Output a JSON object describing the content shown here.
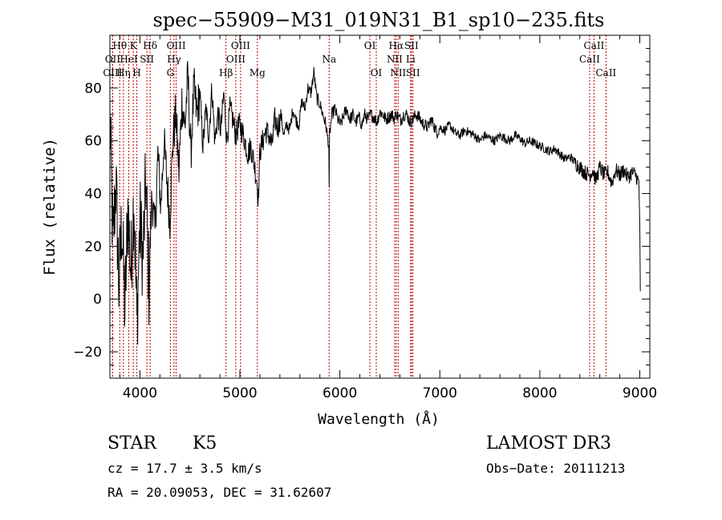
{
  "chart_data": {
    "type": "line",
    "title": "spec−55909−M31_019N31_B1_sp10−235.fits",
    "xlabel": "Wavelength (Å)",
    "ylabel": "Flux (relative)",
    "xlim": [
      3700,
      9100
    ],
    "ylim": [
      -30,
      100
    ],
    "xticks": [
      4000,
      5000,
      6000,
      7000,
      8000,
      9000
    ],
    "yticks": [
      -20,
      0,
      20,
      40,
      60,
      80
    ],
    "ytick_labels": [
      "−20",
      "0",
      "20",
      "40",
      "60",
      "80"
    ],
    "grid": false,
    "series": [
      {
        "name": "flux",
        "color": "#000000",
        "x": [
          3700,
          3730,
          3760,
          3790,
          3820,
          3850,
          3880,
          3910,
          3940,
          3970,
          4000,
          4030,
          4060,
          4090,
          4120,
          4150,
          4180,
          4210,
          4240,
          4270,
          4300,
          4330,
          4360,
          4390,
          4420,
          4450,
          4480,
          4510,
          4540,
          4570,
          4600,
          4630,
          4660,
          4690,
          4720,
          4750,
          4780,
          4810,
          4840,
          4870,
          4900,
          4930,
          4960,
          4990,
          5020,
          5050,
          5080,
          5110,
          5140,
          5170,
          5185,
          5200,
          5230,
          5260,
          5290,
          5320,
          5350,
          5380,
          5410,
          5440,
          5470,
          5500,
          5530,
          5560,
          5590,
          5620,
          5650,
          5680,
          5710,
          5740,
          5770,
          5800,
          5830,
          5860,
          5890,
          5893,
          5897,
          5920,
          5950,
          5980,
          6010,
          6040,
          6070,
          6100,
          6130,
          6160,
          6190,
          6220,
          6250,
          6280,
          6310,
          6340,
          6370,
          6400,
          6430,
          6460,
          6490,
          6520,
          6550,
          6563,
          6580,
          6610,
          6640,
          6670,
          6700,
          6730,
          6760,
          6790,
          6820,
          6850,
          6880,
          6910,
          6940,
          6970,
          7000,
          7050,
          7100,
          7150,
          7200,
          7250,
          7300,
          7350,
          7400,
          7450,
          7500,
          7550,
          7600,
          7650,
          7700,
          7750,
          7800,
          7850,
          7900,
          7950,
          8000,
          8050,
          8100,
          8150,
          8200,
          8250,
          8300,
          8350,
          8400,
          8450,
          8500,
          8530,
          8560,
          8600,
          8640,
          8680,
          8720,
          8760,
          8800,
          8840,
          8880,
          8920,
          8960,
          8990,
          9000,
          9005
        ],
        "values": [
          70,
          20,
          45,
          5,
          30,
          -5,
          35,
          10,
          40,
          -10,
          30,
          15,
          45,
          5,
          40,
          25,
          55,
          35,
          60,
          45,
          30,
          60,
          70,
          48,
          75,
          65,
          85,
          55,
          80,
          70,
          78,
          58,
          72,
          62,
          80,
          60,
          70,
          64,
          78,
          60,
          72,
          68,
          62,
          66,
          64,
          60,
          55,
          58,
          52,
          45,
          38,
          56,
          60,
          64,
          62,
          58,
          68,
          65,
          70,
          62,
          66,
          64,
          72,
          68,
          66,
          75,
          72,
          80,
          78,
          86,
          76,
          74,
          70,
          66,
          58,
          40,
          62,
          70,
          72,
          68,
          66,
          70,
          72,
          68,
          70,
          67,
          69,
          66,
          70,
          68,
          70,
          69,
          67,
          71,
          70,
          68,
          69,
          70,
          68,
          71,
          69,
          68,
          70,
          70,
          67,
          68,
          70,
          69,
          67,
          66,
          65,
          68,
          66,
          63,
          65,
          64,
          66,
          63,
          62,
          64,
          63,
          62,
          60,
          62,
          61,
          60,
          62,
          61,
          60,
          62,
          61,
          59,
          60,
          59,
          58,
          57,
          56,
          57,
          55,
          53,
          54,
          52,
          50,
          48,
          47,
          49,
          45,
          50,
          47,
          48,
          44,
          49,
          47,
          49,
          46,
          48,
          47,
          44,
          30,
          3
        ]
      }
    ],
    "lines": [
      {
        "label": "Hθ",
        "x": 3798,
        "row": 1
      },
      {
        "label": "OII",
        "x": 3727,
        "row": 2
      },
      {
        "label": "OIII",
        "x": 3727,
        "row": 3
      },
      {
        "label": "K",
        "x": 3934,
        "row": 1
      },
      {
        "label": "HeI",
        "x": 3889,
        "row": 2
      },
      {
        "label": "Hη",
        "x": 3835,
        "row": 3
      },
      {
        "label": "Hδ",
        "x": 4102,
        "row": 1
      },
      {
        "label": "SII",
        "x": 4070,
        "row": 2
      },
      {
        "label": "H",
        "x": 3969,
        "row": 3
      },
      {
        "label": "OIII",
        "x": 4363,
        "row": 1
      },
      {
        "label": "Hγ",
        "x": 4341,
        "row": 2
      },
      {
        "label": "G",
        "x": 4305,
        "row": 3
      },
      {
        "label": "OIII",
        "x": 5007,
        "row": 1
      },
      {
        "label": "OIII",
        "x": 4959,
        "row": 2
      },
      {
        "label": "Hβ",
        "x": 4861,
        "row": 3
      },
      {
        "label": "Mg",
        "x": 5175,
        "row": 3
      },
      {
        "label": "Na",
        "x": 5893,
        "row": 2
      },
      {
        "label": "OI",
        "x": 6300,
        "row": 1
      },
      {
        "label": "OI",
        "x": 6364,
        "row": 3
      },
      {
        "label": "Hα",
        "x": 6563,
        "row": 1
      },
      {
        "label": "SII",
        "x": 6716,
        "row": 1
      },
      {
        "label": "NII",
        "x": 6548,
        "row": 2
      },
      {
        "label": "Li",
        "x": 6708,
        "row": 2
      },
      {
        "label": "NII",
        "x": 6583,
        "row": 3
      },
      {
        "label": "SII",
        "x": 6731,
        "row": 3
      },
      {
        "label": "CaII",
        "x": 8542,
        "row": 1
      },
      {
        "label": "CaII",
        "x": 8498,
        "row": 2
      },
      {
        "label": "CaII",
        "x": 8662,
        "row": 3
      }
    ],
    "line_color": "#c00000"
  },
  "info": {
    "class_label": "STAR",
    "subclass": "K5",
    "survey": "LAMOST DR3",
    "cz_text": "cz = 17.7 ± 3.5 km/s",
    "obs_date_text": "Obs−Date: 20111213",
    "radec_text": "RA =  20.09053, DEC =  31.62607"
  }
}
